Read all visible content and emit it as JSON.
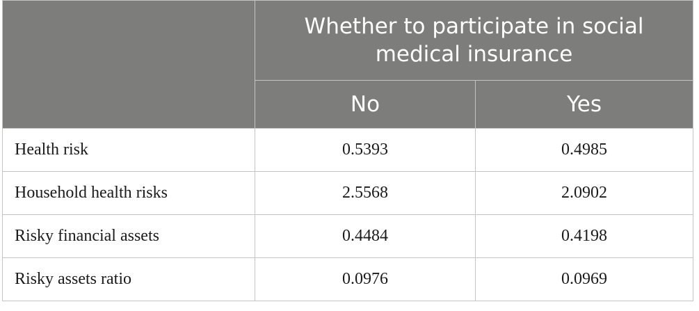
{
  "table": {
    "group_header_line1": "Whether to participate in social",
    "group_header_line2": "medical insurance",
    "columns": [
      "No",
      "Yes"
    ],
    "rows": [
      {
        "label": "Health risk",
        "no": "0.5393",
        "yes": "0.4985"
      },
      {
        "label": "Household health risks",
        "no": "2.5568",
        "yes": "2.0902"
      },
      {
        "label": "Risky financial assets",
        "no": "0.4484",
        "yes": "0.4198"
      },
      {
        "label": "Risky assets ratio",
        "no": "0.0976",
        "yes": "0.0969"
      }
    ]
  }
}
